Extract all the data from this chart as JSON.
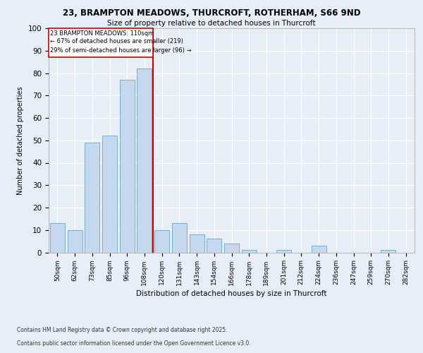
{
  "title1": "23, BRAMPTON MEADOWS, THURCROFT, ROTHERHAM, S66 9ND",
  "title2": "Size of property relative to detached houses in Thurcroft",
  "xlabel": "Distribution of detached houses by size in Thurcroft",
  "ylabel": "Number of detached properties",
  "categories": [
    "50sqm",
    "62sqm",
    "73sqm",
    "85sqm",
    "96sqm",
    "108sqm",
    "120sqm",
    "131sqm",
    "143sqm",
    "154sqm",
    "166sqm",
    "178sqm",
    "189sqm",
    "201sqm",
    "212sqm",
    "224sqm",
    "236sqm",
    "247sqm",
    "259sqm",
    "270sqm",
    "282sqm"
  ],
  "values": [
    13,
    10,
    49,
    52,
    77,
    82,
    10,
    13,
    8,
    6,
    4,
    1,
    0,
    1,
    0,
    3,
    0,
    0,
    0,
    1,
    0
  ],
  "bar_color": "#c5d8ed",
  "bar_edge_color": "#7aadce",
  "property_bin_index": 5,
  "annotation_title": "23 BRAMPTON MEADOWS: 110sqm",
  "annotation_line1": "← 67% of detached houses are smaller (219)",
  "annotation_line2": "29% of semi-detached houses are larger (96) →",
  "vline_color": "#cc0000",
  "box_edge_color": "#cc0000",
  "ylim": [
    0,
    100
  ],
  "yticks": [
    0,
    10,
    20,
    30,
    40,
    50,
    60,
    70,
    80,
    90,
    100
  ],
  "footer1": "Contains HM Land Registry data © Crown copyright and database right 2025.",
  "footer2": "Contains public sector information licensed under the Open Government Licence v3.0.",
  "bg_color": "#e8eef7",
  "plot_bg_color": "#e8eef7"
}
